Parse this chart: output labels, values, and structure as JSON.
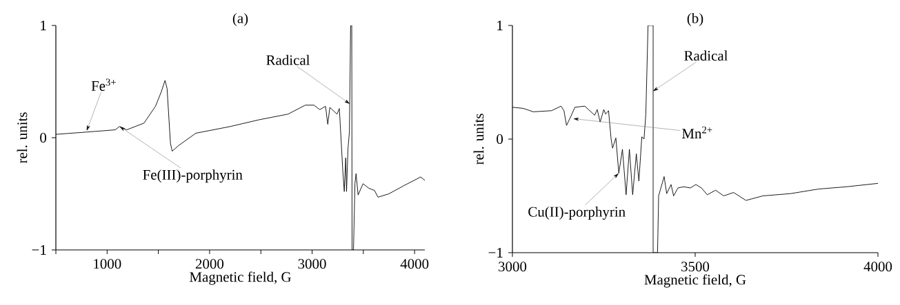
{
  "chart_data": [
    {
      "type": "line",
      "title": "(a)",
      "xlabel": "Magnetic field, G",
      "ylabel": "rel. units",
      "color": "#000000",
      "x": [
        500,
        798,
        1079,
        1121,
        1191,
        1360,
        1472,
        1529,
        1565,
        1585,
        1618,
        1635,
        1697,
        1866,
        2203,
        2484,
        2765,
        2934,
        3018,
        3075,
        3131,
        3153,
        3173,
        3243,
        3266,
        3277,
        3300,
        3314,
        3328,
        3336,
        3350,
        3364,
        3376,
        3387,
        3390,
        3404,
        3418,
        3429,
        3449,
        3497,
        3553,
        3609,
        3643,
        3749,
        3890,
        4059,
        4100
      ],
      "values": [
        0.03,
        0.05,
        0.07,
        0.1,
        0.07,
        0.13,
        0.28,
        0.41,
        0.51,
        0.44,
        -0.05,
        -0.12,
        -0.07,
        0.04,
        0.1,
        0.16,
        0.21,
        0.29,
        0.29,
        0.25,
        0.28,
        0.12,
        0.27,
        0.21,
        0.26,
        0.08,
        -0.3,
        -0.48,
        -0.18,
        -0.48,
        -0.1,
        0.05,
        1.0,
        1.0,
        -1.0,
        -1.0,
        -0.41,
        -0.32,
        -0.51,
        -0.41,
        -0.45,
        -0.47,
        -0.53,
        -0.5,
        -0.43,
        -0.35,
        -0.38
      ],
      "xlim": [
        500,
        4100
      ],
      "ylim": [
        -1,
        1
      ],
      "xticks": [
        {
          "value": 500,
          "label": null
        },
        1000,
        {
          "value": 1500,
          "label": null
        },
        2000,
        {
          "value": 2500,
          "label": null
        },
        3000,
        {
          "value": 3500,
          "label": null
        },
        4000
      ],
      "yticks": [
        {
          "value": -1,
          "label": "−1"
        },
        0,
        1
      ],
      "annotations": [
        {
          "text": "Fe$^{3+}$",
          "x": 800,
          "y": 0.06
        },
        {
          "text": "Fe(III)-porphyrin",
          "x": 1121,
          "y": 0.1
        },
        {
          "text": "Radical",
          "x": 3370,
          "y": 0.3
        }
      ]
    },
    {
      "type": "line",
      "title": "(b)",
      "xlabel": "Magnetic field, G",
      "ylabel": "rel. units",
      "color": "#000000",
      "x": [
        3000,
        3030,
        3057,
        3107,
        3133,
        3141,
        3148,
        3160,
        3171,
        3198,
        3225,
        3232,
        3240,
        3250,
        3255,
        3263,
        3270,
        3274,
        3283,
        3291,
        3301,
        3311,
        3320,
        3329,
        3339,
        3346,
        3354,
        3360,
        3365,
        3371,
        3385,
        3385,
        3397,
        3400,
        3415,
        3422,
        3434,
        3441,
        3453,
        3468,
        3487,
        3502,
        3517,
        3533,
        3556,
        3578,
        3605,
        3639,
        3685,
        3761,
        3837,
        3913,
        4000
      ],
      "values": [
        0.28,
        0.27,
        0.24,
        0.25,
        0.29,
        0.25,
        0.12,
        0.2,
        0.28,
        0.29,
        0.21,
        0.26,
        0.15,
        0.26,
        0.22,
        0.25,
        0.0,
        -0.08,
        0.01,
        -0.3,
        -0.09,
        -0.49,
        -0.09,
        -0.49,
        -0.13,
        -0.37,
        0.02,
        0.0,
        0.22,
        1.0,
        1.0,
        -1.0,
        -1.0,
        -0.5,
        -0.33,
        -0.48,
        -0.4,
        -0.5,
        -0.43,
        -0.42,
        -0.43,
        -0.4,
        -0.43,
        -0.49,
        -0.45,
        -0.5,
        -0.47,
        -0.54,
        -0.5,
        -0.48,
        -0.44,
        -0.42,
        -0.39
      ],
      "xlim": [
        3000,
        4000
      ],
      "ylim": [
        -1,
        1
      ],
      "xticks": [
        3000,
        3500,
        4000
      ],
      "yticks": [
        {
          "value": -1,
          "label": "−1"
        },
        0,
        1
      ],
      "annotations": [
        {
          "text": "Radical",
          "x": 3384,
          "y": 0.42
        },
        {
          "text": "Mn$^{2+}$",
          "x": 3166,
          "y": 0.18
        },
        {
          "text": "Cu(II)-porphyrin",
          "x": 3291,
          "y": -0.3
        }
      ]
    }
  ]
}
